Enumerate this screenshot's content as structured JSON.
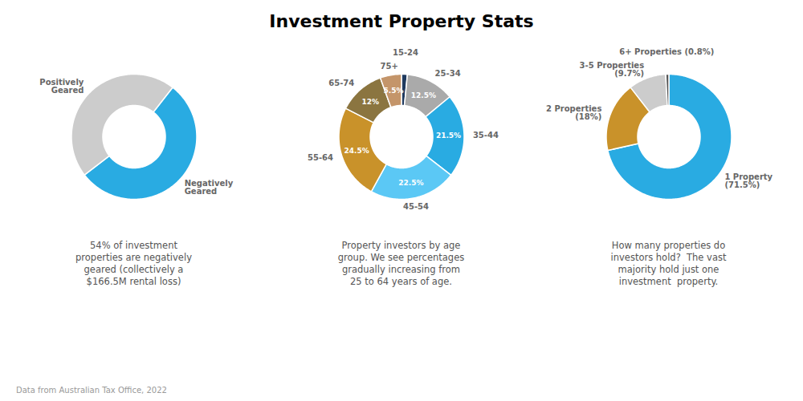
{
  "title": "Investment Property Stats",
  "footer": "Data from Australian Tax Office, 2022",
  "chart_data": [
    {
      "type": "pie",
      "categories": [
        "Negatively\nGeared",
        "Positively\nGeared"
      ],
      "values": [
        54,
        46
      ],
      "colors": [
        "#29ABE2",
        "#CCCCCC"
      ],
      "caption": "54% of investment\nproperties are negatively\ngeared (collectively a\n$166.5M rental loss)"
    },
    {
      "type": "pie",
      "categories": [
        "15-24",
        "25-34",
        "35-44",
        "45-54",
        "55-64",
        "65-74",
        "75+"
      ],
      "values": [
        1.5,
        12.5,
        21.5,
        22.5,
        24.5,
        12.0,
        5.5
      ],
      "value_labels": [
        null,
        "12.5%",
        "21.5%",
        "22.5%",
        "24.5%",
        "12%",
        "5.5%"
      ],
      "data_labels": true,
      "colors": [
        "#1F3A5F",
        "#AAAAAA",
        "#29ABE2",
        "#5BC8F5",
        "#C9922A",
        "#8B7540",
        "#C4956A"
      ],
      "caption": "Property investors by age\ngroup. We see percentages\ngradually increasing from\n25 to 64 years of age."
    },
    {
      "type": "pie",
      "categories": [
        "1 Property\n(71.5%)",
        "2 Properties\n(18%)",
        "3-5 Properties\n(9.7%)",
        "6+ Properties (0.8%)"
      ],
      "values": [
        71.5,
        18.0,
        9.7,
        0.8
      ],
      "colors": [
        "#29ABE2",
        "#C9922A",
        "#CCCCCC",
        "#555555"
      ],
      "caption": "How many properties do\ninvestors hold?  The vast\nmajority hold just one\ninvestment  property."
    }
  ]
}
